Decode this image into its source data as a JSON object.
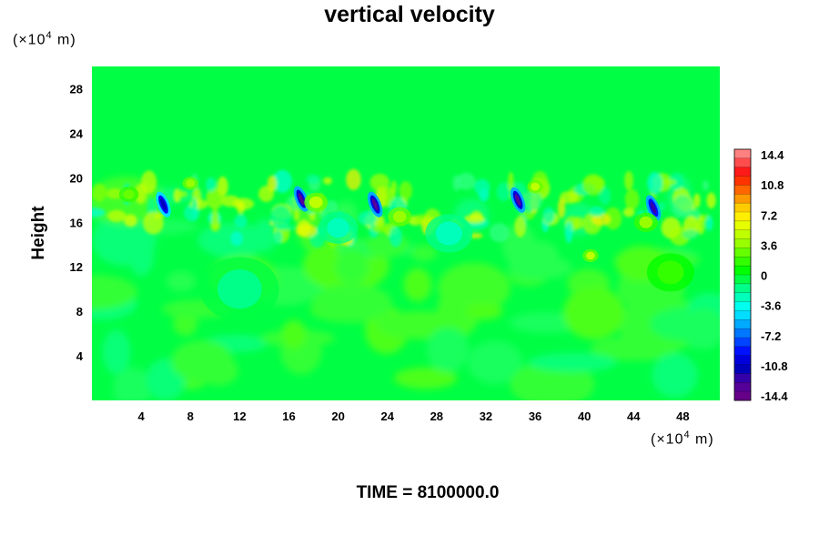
{
  "chart_data": {
    "type": "heatmap",
    "title": "vertical velocity",
    "xlabel": "",
    "ylabel": "Height",
    "x_unit": "(×10",
    "x_unit_exp": "4",
    "x_unit_tail": " m)",
    "y_unit": "(×10",
    "y_unit_exp": "4",
    "y_unit_tail": " m)",
    "xlim": [
      0,
      51
    ],
    "ylim": [
      0,
      30
    ],
    "xticks": [
      4,
      8,
      12,
      16,
      20,
      24,
      28,
      32,
      36,
      40,
      44,
      48
    ],
    "yticks": [
      4,
      8,
      12,
      16,
      20,
      24,
      28
    ],
    "colorbar": {
      "range": [
        -14.4,
        14.4
      ],
      "ticks": [
        "14.4",
        "10.8",
        "7.2",
        "3.6",
        "0",
        "-3.6",
        "-7.2",
        "-10.8",
        "-14.4"
      ],
      "colors": [
        "#ff8080",
        "#ff4d4d",
        "#ff1a1a",
        "#ff3300",
        "#ff6600",
        "#ff9900",
        "#ffcc00",
        "#ffee00",
        "#e6ff00",
        "#bfff00",
        "#99ff00",
        "#66ff00",
        "#33ff00",
        "#00ff00",
        "#00ff44",
        "#00ff88",
        "#00ffbb",
        "#00ffee",
        "#00ddff",
        "#00aaff",
        "#0077ff",
        "#0044ff",
        "#0011ff",
        "#0000dd",
        "#0000bb",
        "#3300aa",
        "#550099",
        "#660088"
      ]
    },
    "background_value": 0,
    "features": [
      {
        "x": 5.8,
        "y": 17.6,
        "w": 0.22,
        "v": -11.0
      },
      {
        "x": 17.0,
        "y": 18.1,
        "w": 0.22,
        "v": -13.0
      },
      {
        "x": 23.0,
        "y": 17.6,
        "w": 0.22,
        "v": -12.5
      },
      {
        "x": 34.6,
        "y": 18.0,
        "w": 0.22,
        "v": -13.0
      },
      {
        "x": 45.6,
        "y": 17.3,
        "w": 0.22,
        "v": -11.5
      },
      {
        "x": 18.2,
        "y": 17.8,
        "w": 0.6,
        "v": 4.5
      },
      {
        "x": 25.0,
        "y": 16.5,
        "w": 0.6,
        "v": 3.6
      },
      {
        "x": 40.5,
        "y": 13.0,
        "w": 0.4,
        "v": 5.0
      },
      {
        "x": 36.0,
        "y": 19.2,
        "w": 0.4,
        "v": 4.5
      },
      {
        "x": 8.0,
        "y": 19.5,
        "w": 0.4,
        "v": 4.0
      },
      {
        "x": 45.0,
        "y": 16.0,
        "w": 0.6,
        "v": 3.2
      },
      {
        "x": 3.0,
        "y": 18.5,
        "w": 0.5,
        "v": 2.8
      },
      {
        "x": 12.0,
        "y": 10.0,
        "w": 2.0,
        "v": -1.5
      },
      {
        "x": 29.0,
        "y": 15.0,
        "w": 1.2,
        "v": -3.0
      },
      {
        "x": 20.0,
        "y": 15.5,
        "w": 1.0,
        "v": -2.8
      },
      {
        "x": 47.0,
        "y": 11.5,
        "w": 1.2,
        "v": 1.6
      }
    ]
  },
  "footer": {
    "time_label": "TIME = 8100000.0"
  }
}
